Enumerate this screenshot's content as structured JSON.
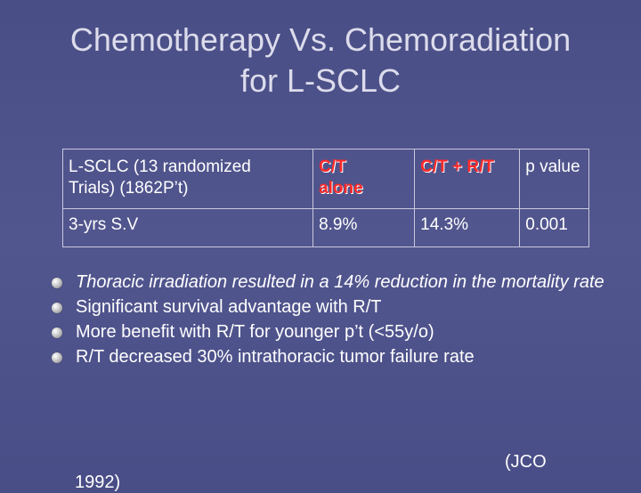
{
  "title": {
    "line1": "Chemotherapy Vs. Chemoradiation",
    "line2": "for L-SCLC"
  },
  "table": {
    "header": {
      "c1_line1": "L-SCLC (13 randomized",
      "c1_line2": "Trials) (1862P’t)",
      "c2_line1": "C/T",
      "c2_line2": "alone",
      "c3": "C/T + R/T",
      "c4": "p value"
    },
    "row": {
      "label": "3-yrs S.V",
      "ct_alone": "8.9%",
      "ct_rt": "14.3%",
      "p_value": "0.001"
    },
    "accent_color": "#ff2a2a"
  },
  "bullets": [
    {
      "text": "Thoracic irradiation resulted in a 14% reduction in the mortality rate"
    },
    {
      "text": "Significant survival advantage with R/T"
    },
    {
      "text": "More benefit with R/T for younger p’t (<55y/o)"
    },
    {
      "text": "R/T decreased 30% intrathoracic tumor failure rate"
    }
  ],
  "reference": "(JCO",
  "reference_cont": "1992)"
}
